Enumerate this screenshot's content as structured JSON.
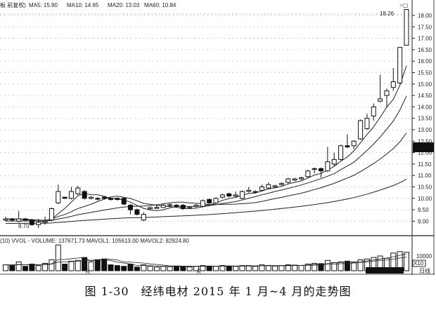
{
  "chart_data": {
    "type": "candlestick",
    "header": {
      "prefix": "板 前复权)",
      "ma_labels": [
        "MA5: 15.90",
        "MA10: 14.65",
        "MA20: 13.03",
        "MA60: 10.84"
      ]
    },
    "y_axis_ticks": [
      "18.00",
      "17.50",
      "17.00",
      "16.50",
      "16.00",
      "15.50",
      "15.00",
      "14.50",
      "14.00",
      "13.50",
      "13.00",
      "12.50",
      "12.00",
      "11.50",
      "11.00",
      "10.50",
      "10.00",
      "9.50",
      "9.00"
    ],
    "ylim": [
      8.6,
      18.3
    ],
    "annotations": {
      "high": "18.26",
      "low": "8.70"
    },
    "ohlc": [
      [
        9.05,
        9.2,
        9.0,
        9.1
      ],
      [
        9.1,
        9.15,
        9.0,
        9.05
      ],
      [
        9.0,
        9.45,
        8.95,
        9.1
      ],
      [
        9.1,
        9.15,
        9.0,
        9.05
      ],
      [
        9.05,
        9.1,
        8.8,
        8.85
      ],
      [
        8.85,
        9.1,
        8.7,
        8.95
      ],
      [
        8.95,
        9.2,
        8.85,
        9.0
      ],
      [
        9.05,
        9.6,
        9.0,
        9.55
      ],
      [
        9.8,
        10.6,
        9.75,
        10.3
      ],
      [
        10.05,
        10.05,
        9.98,
        10.0
      ],
      [
        10.0,
        10.5,
        9.95,
        10.3
      ],
      [
        10.2,
        10.55,
        10.15,
        10.45
      ],
      [
        10.3,
        10.35,
        9.95,
        10.0
      ],
      [
        10.0,
        10.1,
        9.95,
        10.05
      ],
      [
        10.0,
        10.05,
        9.9,
        9.98
      ],
      [
        10.05,
        10.1,
        9.95,
        10.0
      ],
      [
        10.0,
        10.05,
        9.9,
        9.95
      ],
      [
        10.0,
        10.05,
        9.9,
        9.95
      ],
      [
        10.0,
        10.05,
        9.7,
        9.75
      ],
      [
        9.7,
        9.75,
        9.3,
        9.5
      ],
      [
        9.5,
        9.55,
        9.25,
        9.3
      ],
      [
        9.05,
        9.4,
        9.0,
        9.3
      ],
      [
        9.55,
        9.65,
        9.5,
        9.6
      ],
      [
        9.6,
        9.7,
        9.55,
        9.6
      ],
      [
        9.6,
        9.75,
        9.58,
        9.7
      ],
      [
        9.7,
        9.78,
        9.65,
        9.72
      ],
      [
        9.7,
        9.75,
        9.6,
        9.65
      ],
      [
        9.7,
        9.75,
        9.5,
        9.55
      ],
      [
        9.6,
        9.65,
        9.55,
        9.6
      ],
      [
        9.65,
        9.75,
        9.6,
        9.7
      ],
      [
        9.65,
        9.95,
        9.6,
        9.9
      ],
      [
        9.95,
        10.0,
        9.75,
        9.8
      ],
      [
        9.8,
        10.05,
        9.75,
        10.0
      ],
      [
        10.05,
        10.2,
        10.0,
        10.15
      ],
      [
        10.2,
        10.25,
        10.05,
        10.1
      ],
      [
        10.1,
        10.3,
        10.05,
        10.15
      ],
      [
        10.0,
        10.35,
        9.95,
        10.3
      ],
      [
        10.3,
        10.5,
        10.25,
        10.35
      ],
      [
        10.3,
        10.35,
        10.2,
        10.3
      ],
      [
        10.35,
        10.6,
        10.3,
        10.5
      ],
      [
        10.45,
        10.7,
        10.4,
        10.6
      ],
      [
        10.5,
        10.6,
        10.45,
        10.55
      ],
      [
        10.6,
        10.7,
        10.55,
        10.65
      ],
      [
        10.7,
        10.9,
        10.65,
        10.85
      ],
      [
        10.8,
        10.9,
        10.75,
        10.85
      ],
      [
        10.85,
        10.95,
        10.8,
        10.9
      ],
      [
        10.95,
        11.25,
        10.9,
        11.2
      ],
      [
        11.3,
        11.35,
        11.1,
        11.3
      ],
      [
        11.3,
        11.35,
        10.9,
        11.2
      ],
      [
        11.2,
        12.25,
        11.15,
        11.6
      ],
      [
        11.5,
        12.0,
        11.4,
        11.7
      ],
      [
        11.7,
        12.35,
        11.65,
        12.3
      ],
      [
        12.3,
        12.8,
        12.2,
        12.25
      ],
      [
        12.3,
        12.55,
        12.15,
        12.5
      ],
      [
        12.6,
        13.45,
        12.55,
        13.4
      ],
      [
        13.05,
        13.7,
        13.0,
        13.5
      ],
      [
        13.6,
        14.15,
        13.4,
        14.0
      ],
      [
        14.25,
        15.4,
        14.2,
        14.35
      ],
      [
        14.5,
        14.8,
        14.0,
        14.7
      ],
      [
        14.85,
        15.7,
        14.7,
        15.1
      ],
      [
        15.05,
        16.6,
        15.0,
        16.6
      ],
      [
        16.7,
        18.26,
        16.7,
        18.26
      ]
    ],
    "volume_panel": {
      "header": "(10) VVOL -  VOLUME: 137671.73  MAVOL1: 105613.00  MAVOL2: 82924.80",
      "tick": "10000",
      "unit": "X10",
      "period": "日线",
      "date_markers": [
        "R",
        "R"
      ],
      "values": [
        4000,
        3500,
        6000,
        3000,
        4500,
        3500,
        5000,
        7500,
        17500,
        4500,
        6500,
        7000,
        9000,
        6000,
        7500,
        8000,
        4000,
        3500,
        3000,
        4500,
        2500,
        4000,
        3000,
        2500,
        3000,
        2800,
        3200,
        3000,
        2600,
        3000,
        3500,
        3200,
        3000,
        3500,
        3200,
        3000,
        3500,
        3500,
        3000,
        4000,
        3600,
        3200,
        3500,
        4000,
        3800,
        3600,
        4500,
        5000,
        4800,
        7000,
        5500,
        6000,
        6500,
        5500,
        7500,
        8000,
        9000,
        10000,
        8500,
        12000,
        13000,
        12500
      ]
    },
    "colors": {
      "up": "#ffffff",
      "down": "#111111",
      "line": "#222222"
    }
  },
  "caption": "图 1-30　经纬电材 2015 年 1 月~4 月的走势图"
}
